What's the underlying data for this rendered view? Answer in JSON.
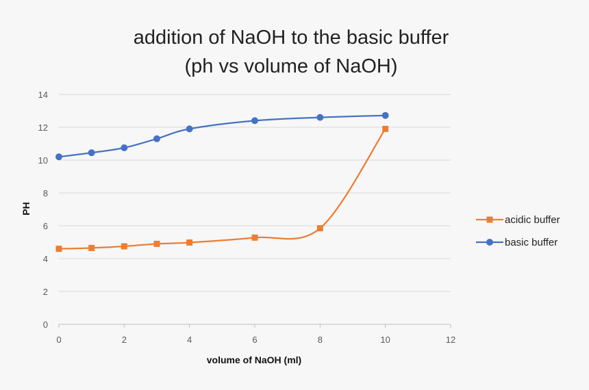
{
  "chart_data": {
    "type": "line",
    "title_line1": "addition of NaOH to the basic buffer",
    "title_line2": "(ph vs volume of NaOH)",
    "xlabel": "volume of NaOH (ml)",
    "ylabel": "PH",
    "xlim": [
      0,
      12
    ],
    "ylim": [
      0,
      14
    ],
    "x_ticks": [
      0,
      2,
      4,
      6,
      8,
      10,
      12
    ],
    "y_ticks": [
      0,
      2,
      4,
      6,
      8,
      10,
      12,
      14
    ],
    "grid": "horizontal",
    "smooth": true,
    "legend_position": "right",
    "series": [
      {
        "name": "acidic buffer",
        "color": "#ed7d31",
        "marker": "square",
        "x": [
          0,
          1,
          2,
          3,
          4,
          6,
          8,
          10
        ],
        "y": [
          4.6,
          4.65,
          4.75,
          4.9,
          4.98,
          5.28,
          5.85,
          11.9
        ]
      },
      {
        "name": "basic buffer",
        "color": "#4472c4",
        "marker": "circle",
        "x": [
          0,
          1,
          2,
          3,
          4,
          6,
          8,
          10
        ],
        "y": [
          10.2,
          10.45,
          10.75,
          11.3,
          11.9,
          12.4,
          12.6,
          12.72
        ]
      }
    ]
  }
}
